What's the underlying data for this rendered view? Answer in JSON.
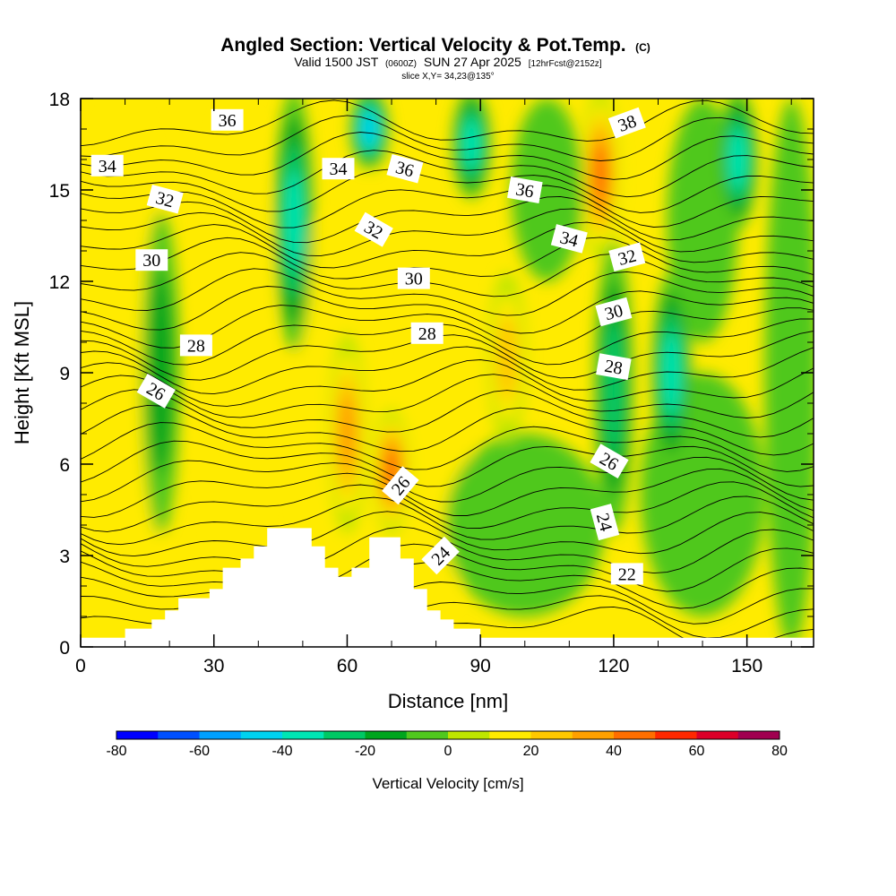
{
  "title": {
    "main": "Angled Section: Vertical Velocity & Pot.Temp.",
    "main_suffix": "(C)",
    "valid_prefix": "Valid 1500 JST",
    "valid_utc": "(0600Z)",
    "valid_date": "SUN 27 Apr 2025",
    "forecast_info": "[12hrFcst@2152z]",
    "slice": "slice X,Y= 34,23@135°"
  },
  "chart_data": {
    "type": "heatmap",
    "xlabel": "Distance [nm]",
    "ylabel": "Height [Kft MSL]",
    "xlim": [
      0,
      165
    ],
    "ylim": [
      0,
      18
    ],
    "xticks": [
      0,
      30,
      60,
      90,
      120,
      150
    ],
    "yticks": [
      0,
      3,
      6,
      9,
      12,
      15,
      18
    ],
    "fill_variable": "Vertical Velocity [cm/s]",
    "colorbar": {
      "label": "Vertical Velocity [cm/s]",
      "ticks": [
        -80,
        -60,
        -40,
        -20,
        0,
        20,
        40,
        60,
        80
      ],
      "levels": [
        -80,
        -70,
        -60,
        -50,
        -40,
        -30,
        -20,
        -10,
        0,
        10,
        20,
        30,
        40,
        50,
        60,
        70,
        80
      ],
      "colors": [
        "#0000ff",
        "#0050ff",
        "#00a0ff",
        "#00d2f0",
        "#00e6b4",
        "#00c864",
        "#00a51e",
        "#50c81e",
        "#bee600",
        "#ffeb00",
        "#ffc800",
        "#ffa000",
        "#ff6e00",
        "#ff2800",
        "#dc0028",
        "#a00050"
      ]
    },
    "velocity_cores": [
      {
        "x": 18,
        "y_range": [
          4,
          14
        ],
        "min_value": -20,
        "label": "downdraft"
      },
      {
        "x": 48,
        "y_range": [
          10,
          18
        ],
        "min_value": -40,
        "label": "downdraft"
      },
      {
        "x": 65,
        "y_range": [
          16,
          18
        ],
        "min_value": -50,
        "label": "downdraft"
      },
      {
        "x": 88,
        "y_range": [
          15,
          18
        ],
        "min_value": -40,
        "label": "downdraft"
      },
      {
        "x": 120,
        "y_range": [
          4,
          13
        ],
        "min_value": -30,
        "label": "downdraft"
      },
      {
        "x": 133,
        "y_range": [
          6,
          12
        ],
        "min_value": -40,
        "label": "downdraft"
      },
      {
        "x": 148,
        "y_range": [
          14,
          18
        ],
        "min_value": -40,
        "label": "downdraft"
      },
      {
        "x": 60,
        "y_range": [
          4,
          10
        ],
        "max_value": 40,
        "label": "updraft"
      },
      {
        "x": 70,
        "y_range": [
          4,
          7.5
        ],
        "max_value": 50,
        "label": "updraft"
      },
      {
        "x": 117,
        "y_range": [
          13,
          18
        ],
        "max_value": 50,
        "label": "updraft"
      },
      {
        "x": 96,
        "y_range": [
          7,
          12
        ],
        "max_value": 30,
        "label": "updraft"
      }
    ],
    "isentrope_labels": [
      {
        "text": "36",
        "x": 33,
        "y": 17.3,
        "angle": 0
      },
      {
        "text": "34",
        "x": 6,
        "y": 15.8,
        "angle": 0
      },
      {
        "text": "32",
        "x": 19,
        "y": 14.7,
        "angle": 15
      },
      {
        "text": "30",
        "x": 16,
        "y": 12.7,
        "angle": 0
      },
      {
        "text": "28",
        "x": 26,
        "y": 9.9,
        "angle": 0
      },
      {
        "text": "26",
        "x": 17,
        "y": 8.4,
        "angle": 30
      },
      {
        "text": "34",
        "x": 58,
        "y": 15.7,
        "angle": 0
      },
      {
        "text": "36",
        "x": 73,
        "y": 15.7,
        "angle": 15
      },
      {
        "text": "32",
        "x": 66,
        "y": 13.7,
        "angle": 30
      },
      {
        "text": "30",
        "x": 75,
        "y": 12.1,
        "angle": 0
      },
      {
        "text": "28",
        "x": 78,
        "y": 10.3,
        "angle": 0
      },
      {
        "text": "26",
        "x": 72,
        "y": 5.3,
        "angle": -50
      },
      {
        "text": "24",
        "x": 81,
        "y": 3.0,
        "angle": -45
      },
      {
        "text": "36",
        "x": 100,
        "y": 15.0,
        "angle": 10
      },
      {
        "text": "34",
        "x": 110,
        "y": 13.4,
        "angle": 15
      },
      {
        "text": "38",
        "x": 123,
        "y": 17.2,
        "angle": -20
      },
      {
        "text": "32",
        "x": 123,
        "y": 12.8,
        "angle": -15
      },
      {
        "text": "30",
        "x": 120,
        "y": 11.0,
        "angle": -15
      },
      {
        "text": "28",
        "x": 120,
        "y": 9.2,
        "angle": 10
      },
      {
        "text": "26",
        "x": 119,
        "y": 6.1,
        "angle": 30
      },
      {
        "text": "24",
        "x": 118,
        "y": 4.1,
        "angle": 75
      },
      {
        "text": "22",
        "x": 123,
        "y": 2.4,
        "angle": 0
      }
    ],
    "terrain_profile": [
      {
        "x": 0,
        "y": 0.3
      },
      {
        "x": 10,
        "y": 0.3
      },
      {
        "x": 10,
        "y": 0.6
      },
      {
        "x": 16,
        "y": 0.6
      },
      {
        "x": 16,
        "y": 0.9
      },
      {
        "x": 19,
        "y": 0.9
      },
      {
        "x": 19,
        "y": 1.2
      },
      {
        "x": 22,
        "y": 1.2
      },
      {
        "x": 22,
        "y": 1.6
      },
      {
        "x": 29,
        "y": 1.6
      },
      {
        "x": 29,
        "y": 1.9
      },
      {
        "x": 32,
        "y": 1.9
      },
      {
        "x": 32,
        "y": 2.6
      },
      {
        "x": 36,
        "y": 2.6
      },
      {
        "x": 36,
        "y": 2.9
      },
      {
        "x": 39,
        "y": 2.9
      },
      {
        "x": 39,
        "y": 3.3
      },
      {
        "x": 42,
        "y": 3.3
      },
      {
        "x": 42,
        "y": 3.9
      },
      {
        "x": 52,
        "y": 3.9
      },
      {
        "x": 52,
        "y": 3.3
      },
      {
        "x": 55,
        "y": 3.3
      },
      {
        "x": 55,
        "y": 2.6
      },
      {
        "x": 58,
        "y": 2.6
      },
      {
        "x": 58,
        "y": 2.3
      },
      {
        "x": 61,
        "y": 2.3
      },
      {
        "x": 61,
        "y": 2.6
      },
      {
        "x": 65,
        "y": 2.6
      },
      {
        "x": 65,
        "y": 3.6
      },
      {
        "x": 72,
        "y": 3.6
      },
      {
        "x": 72,
        "y": 2.9
      },
      {
        "x": 75,
        "y": 2.9
      },
      {
        "x": 75,
        "y": 1.9
      },
      {
        "x": 78,
        "y": 1.9
      },
      {
        "x": 78,
        "y": 1.2
      },
      {
        "x": 81,
        "y": 1.2
      },
      {
        "x": 81,
        "y": 0.9
      },
      {
        "x": 84,
        "y": 0.9
      },
      {
        "x": 84,
        "y": 0.6
      },
      {
        "x": 90,
        "y": 0.6
      },
      {
        "x": 90,
        "y": 0.3
      },
      {
        "x": 165,
        "y": 0.3
      }
    ]
  }
}
